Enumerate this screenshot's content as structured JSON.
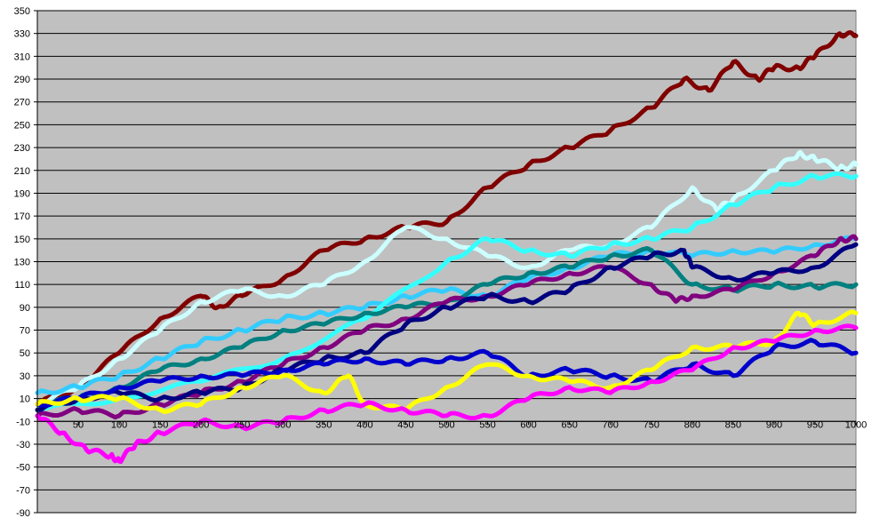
{
  "chart_data": {
    "type": "line",
    "title": "",
    "xlabel": "",
    "ylabel": "",
    "xlim": [
      0,
      1000
    ],
    "ylim": [
      -90,
      350
    ],
    "x_ticks": [
      "50",
      "100",
      "150",
      "200",
      "250",
      "300",
      "350",
      "400",
      "450",
      "500",
      "550",
      "600",
      "650",
      "700",
      "750",
      "800",
      "850",
      "900",
      "950",
      "1000"
    ],
    "y_ticks": [
      "350",
      "330",
      "310",
      "290",
      "270",
      "250",
      "230",
      "210",
      "190",
      "170",
      "150",
      "130",
      "110",
      "90",
      "70",
      "50",
      "30",
      "10",
      "-10",
      "-30",
      "-50",
      "-70",
      "-90"
    ],
    "grid": true,
    "legend": "none",
    "plot_background": "#c0c0c0",
    "series": [
      {
        "color": "#800000",
        "x": [
          0,
          50,
          100,
          150,
          200,
          220,
          250,
          300,
          350,
          400,
          450,
          500,
          550,
          600,
          650,
          700,
          750,
          790,
          820,
          850,
          880,
          900,
          930,
          950,
          980,
          1000
        ],
        "y": [
          5,
          20,
          50,
          80,
          100,
          90,
          100,
          115,
          140,
          150,
          160,
          165,
          195,
          215,
          230,
          245,
          265,
          290,
          280,
          305,
          290,
          300,
          300,
          310,
          330,
          328
        ]
      },
      {
        "color": "#ccffff",
        "x": [
          0,
          50,
          100,
          150,
          200,
          250,
          300,
          350,
          400,
          450,
          500,
          550,
          600,
          650,
          700,
          750,
          800,
          830,
          850,
          900,
          930,
          950,
          980,
          1000
        ],
        "y": [
          5,
          20,
          45,
          70,
          95,
          105,
          100,
          110,
          130,
          160,
          150,
          135,
          125,
          140,
          145,
          160,
          195,
          175,
          185,
          210,
          225,
          220,
          212,
          215
        ]
      },
      {
        "color": "#33ccff",
        "x": [
          0,
          50,
          100,
          150,
          200,
          250,
          300,
          350,
          400,
          450,
          500,
          550,
          600,
          650,
          700,
          750,
          800,
          850,
          900,
          950,
          1000
        ],
        "y": [
          15,
          20,
          30,
          45,
          60,
          70,
          80,
          85,
          90,
          100,
          105,
          100,
          115,
          125,
          135,
          140,
          135,
          140,
          138,
          145,
          150
        ]
      },
      {
        "color": "#33ffff",
        "x": [
          0,
          100,
          200,
          300,
          400,
          500,
          550,
          600,
          650,
          700,
          750,
          800,
          850,
          900,
          950,
          1000
        ],
        "y": [
          0,
          10,
          25,
          45,
          80,
          130,
          150,
          140,
          135,
          145,
          150,
          160,
          180,
          195,
          205,
          205
        ]
      },
      {
        "color": "#008080",
        "x": [
          0,
          50,
          100,
          150,
          200,
          250,
          300,
          350,
          400,
          450,
          500,
          550,
          600,
          650,
          700,
          750,
          800,
          850,
          900,
          950,
          1000
        ],
        "y": [
          5,
          10,
          20,
          35,
          45,
          55,
          70,
          75,
          85,
          90,
          95,
          110,
          120,
          125,
          135,
          140,
          110,
          105,
          110,
          108,
          110
        ]
      },
      {
        "color": "#800080",
        "x": [
          0,
          50,
          100,
          150,
          200,
          250,
          300,
          350,
          400,
          450,
          500,
          550,
          600,
          650,
          700,
          750,
          780,
          800,
          850,
          900,
          950,
          980,
          1000
        ],
        "y": [
          -5,
          0,
          -5,
          5,
          15,
          25,
          40,
          55,
          70,
          80,
          95,
          100,
          110,
          120,
          125,
          110,
          95,
          100,
          105,
          120,
          135,
          150,
          150
        ]
      },
      {
        "color": "#000080",
        "x": [
          0,
          50,
          100,
          150,
          200,
          250,
          300,
          350,
          400,
          450,
          500,
          550,
          600,
          650,
          700,
          750,
          790,
          800,
          850,
          900,
          950,
          1000
        ],
        "y": [
          0,
          10,
          15,
          10,
          15,
          20,
          35,
          45,
          50,
          75,
          90,
          100,
          95,
          105,
          125,
          135,
          140,
          125,
          115,
          120,
          125,
          145
        ]
      },
      {
        "color": "#0000cc",
        "x": [
          0,
          50,
          100,
          150,
          200,
          250,
          300,
          350,
          400,
          450,
          500,
          550,
          600,
          650,
          700,
          750,
          800,
          850,
          900,
          950,
          1000
        ],
        "y": [
          5,
          10,
          20,
          25,
          30,
          30,
          35,
          40,
          45,
          40,
          45,
          50,
          30,
          35,
          30,
          25,
          40,
          30,
          55,
          60,
          50
        ]
      },
      {
        "color": "#ffff00",
        "x": [
          0,
          50,
          100,
          150,
          200,
          250,
          300,
          350,
          380,
          400,
          450,
          500,
          550,
          600,
          650,
          700,
          750,
          800,
          850,
          900,
          930,
          950,
          1000
        ],
        "y": [
          5,
          10,
          10,
          0,
          5,
          20,
          30,
          15,
          30,
          5,
          0,
          20,
          40,
          30,
          25,
          20,
          35,
          55,
          55,
          60,
          85,
          75,
          85
        ]
      },
      {
        "color": "#ff00ff",
        "x": [
          0,
          30,
          60,
          90,
          100,
          120,
          150,
          200,
          250,
          300,
          350,
          400,
          450,
          500,
          550,
          600,
          650,
          700,
          750,
          800,
          850,
          900,
          950,
          1000
        ],
        "y": [
          -5,
          -20,
          -35,
          -40,
          -45,
          -30,
          -20,
          -10,
          -15,
          -10,
          0,
          5,
          0,
          -5,
          -5,
          10,
          20,
          15,
          25,
          35,
          55,
          60,
          70,
          72
        ]
      }
    ]
  }
}
